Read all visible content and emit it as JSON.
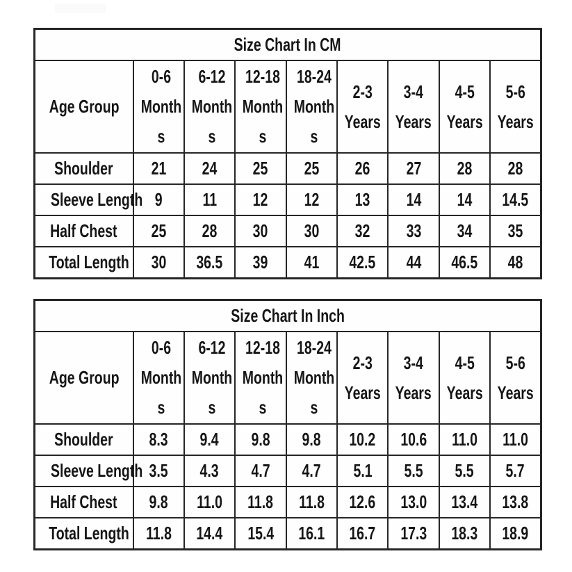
{
  "chart_data": [
    {
      "type": "table",
      "title": "Size Chart In CM",
      "row_header": "Age Group",
      "columns": [
        "0-6 Months",
        "6-12 Months",
        "12-18 Months",
        "18-24 Months",
        "2-3 Years",
        "3-4 Years",
        "4-5 Years",
        "5-6 Years"
      ],
      "rows": [
        {
          "label": "Shoulder",
          "values": [
            "21",
            "24",
            "25",
            "25",
            "26",
            "27",
            "28",
            "28"
          ]
        },
        {
          "label": "Sleeve Length",
          "values": [
            "9",
            "11",
            "12",
            "12",
            "13",
            "14",
            "14",
            "14.5"
          ]
        },
        {
          "label": "Half Chest",
          "values": [
            "25",
            "28",
            "30",
            "30",
            "32",
            "33",
            "34",
            "35"
          ]
        },
        {
          "label": "Total Length",
          "values": [
            "30",
            "36.5",
            "39",
            "41",
            "42.5",
            "44",
            "46.5",
            "48"
          ]
        }
      ]
    },
    {
      "type": "table",
      "title": "Size Chart In Inch",
      "row_header": "Age Group",
      "columns": [
        "0-6 Months",
        "6-12 Months",
        "12-18 Months",
        "18-24 Months",
        "2-3 Years",
        "3-4 Years",
        "4-5 Years",
        "5-6 Years"
      ],
      "rows": [
        {
          "label": "Shoulder",
          "values": [
            "8.3",
            "9.4",
            "9.8",
            "9.8",
            "10.2",
            "10.6",
            "11.0",
            "11.0"
          ]
        },
        {
          "label": "Sleeve Length",
          "values": [
            "3.5",
            "4.3",
            "4.7",
            "4.7",
            "5.1",
            "5.5",
            "5.5",
            "5.7"
          ]
        },
        {
          "label": "Half Chest",
          "values": [
            "9.8",
            "11.0",
            "11.8",
            "11.8",
            "12.6",
            "13.0",
            "13.4",
            "13.8"
          ]
        },
        {
          "label": "Total Length",
          "values": [
            "11.8",
            "14.4",
            "15.4",
            "16.1",
            "16.7",
            "17.3",
            "18.3",
            "18.9"
          ]
        }
      ]
    }
  ],
  "display": {
    "column_lines": [
      "0-6\nMonth\ns",
      "6-12\nMonth\ns",
      "12-18\nMonth\ns",
      "18-24\nMonth\ns",
      "2-3\nYears",
      "3-4\nYears",
      "4-5\nYears",
      "5-6\nYears"
    ]
  },
  "colors": {
    "border": "#262626",
    "text": "#151515",
    "background": "#ffffff",
    "watermark_smudge": "#fafafa"
  }
}
